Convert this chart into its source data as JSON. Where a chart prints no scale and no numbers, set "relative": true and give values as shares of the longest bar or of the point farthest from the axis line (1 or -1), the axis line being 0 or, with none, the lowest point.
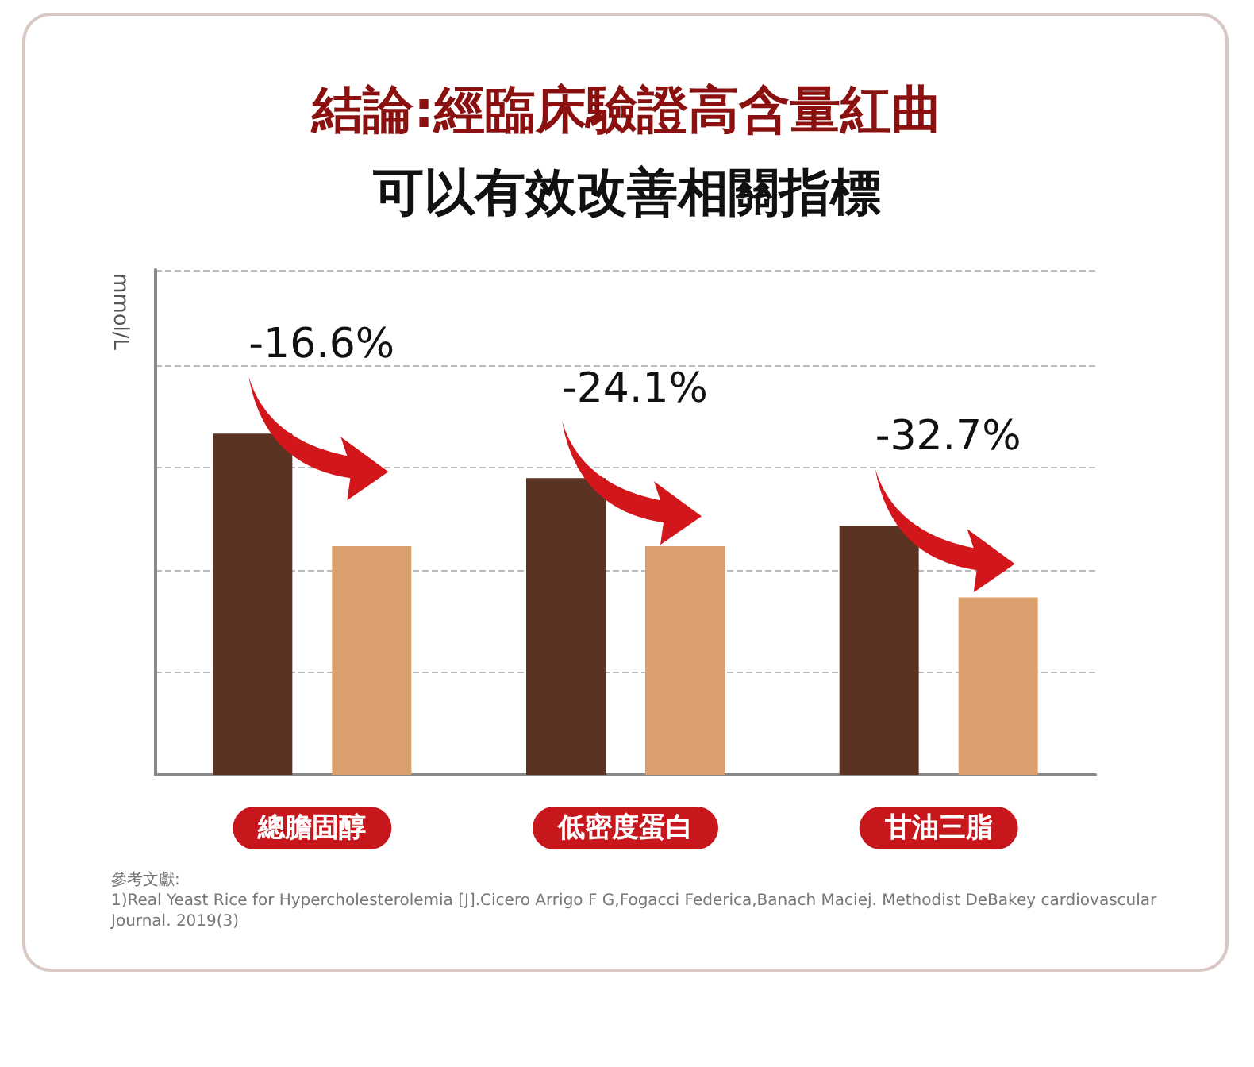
{
  "chart_data": {
    "type": "bar",
    "title": "結論:經臨床驗證高含量紅曲",
    "subtitle": "可以有效改善相關指標",
    "ylabel": "mmol/L",
    "relative": true,
    "grid": "y",
    "categories": [
      "總膽固醇",
      "低密度蛋白",
      "甘油三脂"
    ],
    "series": [
      {
        "color": "#5a3322",
        "values": [
          1,
          0.87,
          0.73
        ]
      },
      {
        "color": "#d9a06e",
        "values": [
          0.67,
          0.67,
          0.52
        ]
      }
    ],
    "annotations": [
      "-16.6%",
      "-24.1%",
      "-32.7%",
      "參考文獻:",
      "1)Real Yeast Rice for Hypercholesterolemia [J].Cicero Arrigo F G,Fogacci Federica,Banach Maciej. Methodist DeBakey cardiovascular Journal. 2019(3)"
    ]
  }
}
